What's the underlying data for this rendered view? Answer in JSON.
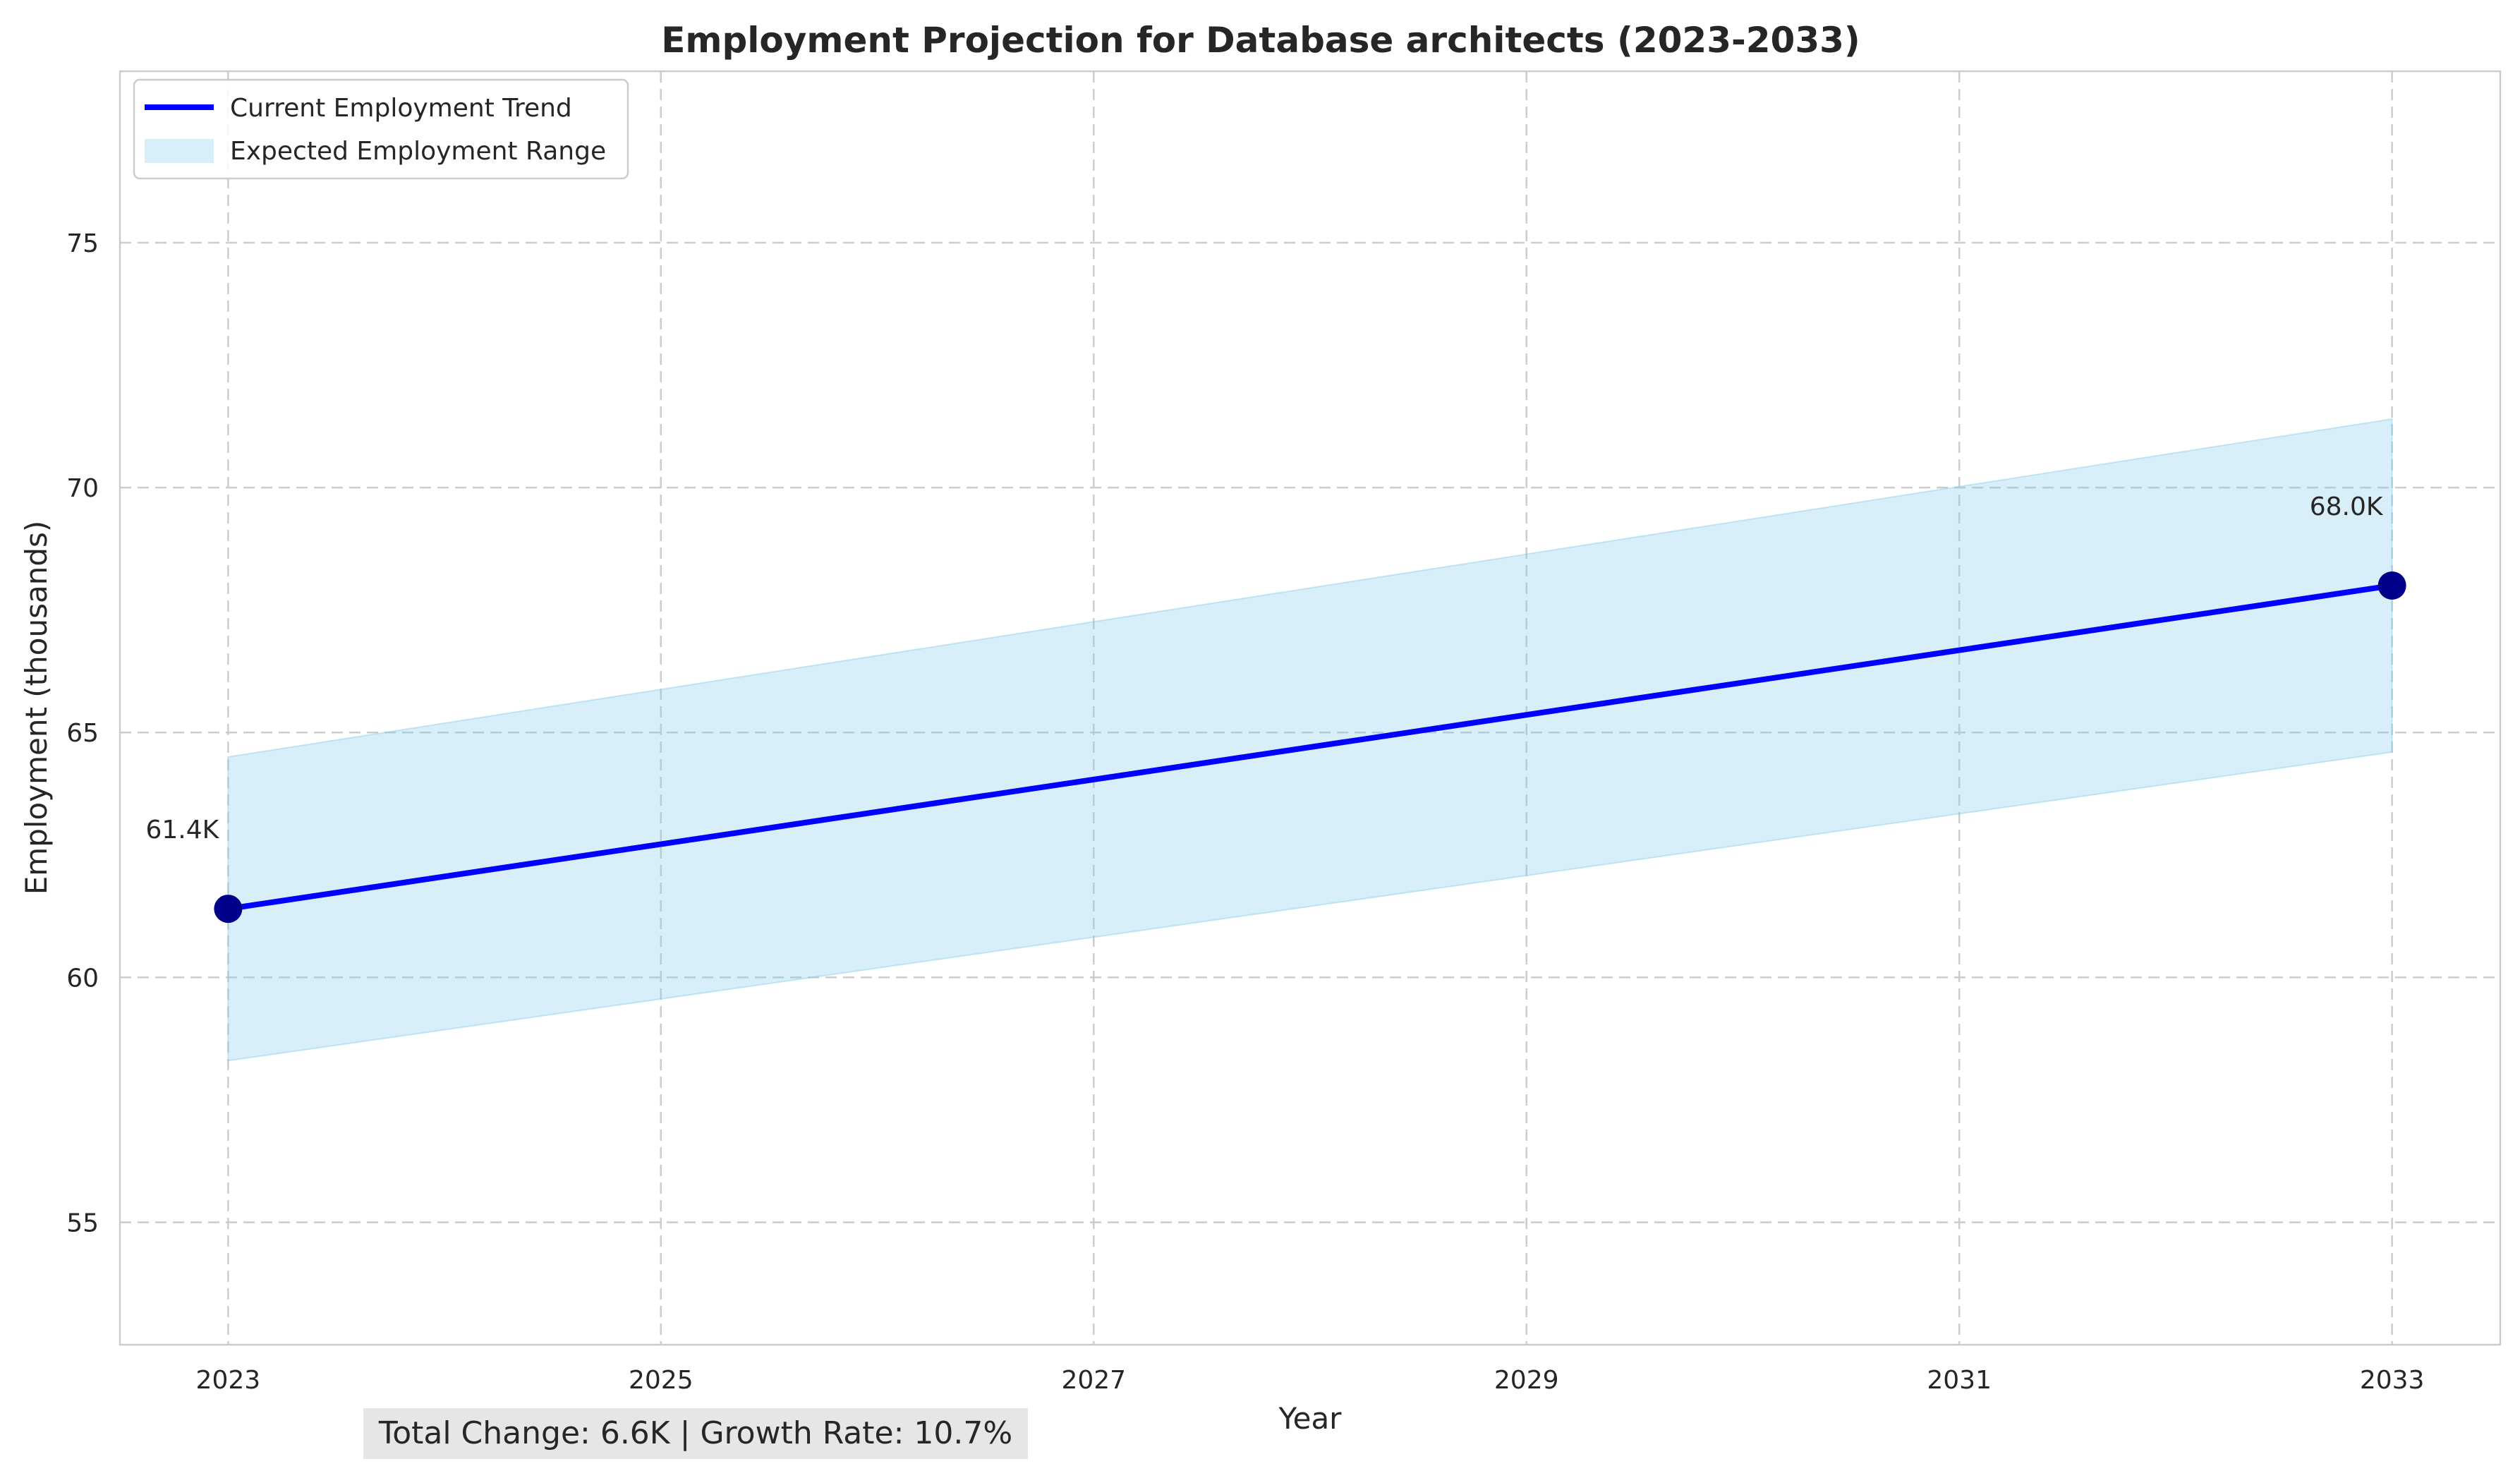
{
  "chart_data": {
    "type": "line",
    "title": "Employment Projection for Database architects (2023-2033)",
    "xlabel": "Year",
    "ylabel": "Employment (thousands)",
    "x_ticks": [
      2023,
      2025,
      2027,
      2029,
      2031,
      2033
    ],
    "y_ticks": [
      55,
      60,
      65,
      70,
      75
    ],
    "xlim": [
      2022.5,
      2033.5
    ],
    "ylim": [
      52.5,
      78.5
    ],
    "grid": true,
    "legend_position": "top-left",
    "series": [
      {
        "name": "Current Employment Trend",
        "kind": "line",
        "color": "#0000ff",
        "x": [
          2023,
          2033
        ],
        "y": [
          61.4,
          68.0
        ]
      },
      {
        "name": "Expected Employment Range",
        "kind": "band",
        "color": "#87ceeb",
        "x": [
          2023,
          2033
        ],
        "lower": [
          58.3,
          64.6
        ],
        "upper": [
          64.5,
          71.4
        ]
      }
    ],
    "markers": [
      {
        "x": 2023,
        "y": 61.4,
        "label": "61.4K",
        "color": "#00008b"
      },
      {
        "x": 2033,
        "y": 68.0,
        "label": "68.0K",
        "color": "#00008b"
      }
    ],
    "footer": "Total Change: 6.6K | Growth Rate: 10.7%"
  }
}
